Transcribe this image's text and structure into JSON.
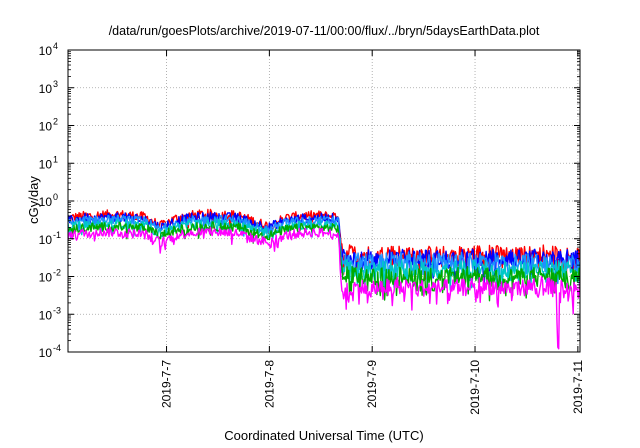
{
  "chart_data": {
    "type": "line",
    "title": "/data/run/goesPlots/archive/2019-07-11/00:00/flux/../bryn/5daysEarthData.plot",
    "xlabel": "Coordinated Universal Time (UTC)",
    "ylabel": "cGy/day",
    "y_scale": "log",
    "ylim": [
      0.0001,
      10000
    ],
    "xlim": [
      "2019-07-06 01:00",
      "2019-07-11 00:30"
    ],
    "grid": true,
    "legend": "none",
    "y_ticks": [
      {
        "value": 0.0001,
        "base": "10",
        "exp": "-4"
      },
      {
        "value": 0.001,
        "base": "10",
        "exp": "-3"
      },
      {
        "value": 0.01,
        "base": "10",
        "exp": "-2"
      },
      {
        "value": 0.1,
        "base": "10",
        "exp": "-1"
      },
      {
        "value": 1,
        "base": "10",
        "exp": "0"
      },
      {
        "value": 10,
        "base": "10",
        "exp": "1"
      },
      {
        "value": 100,
        "base": "10",
        "exp": "2"
      },
      {
        "value": 1000,
        "base": "10",
        "exp": "3"
      },
      {
        "value": 10000,
        "base": "10",
        "exp": "4"
      }
    ],
    "x_ticks": [
      "2019-7-7",
      "2019-7-8",
      "2019-7-9",
      "2019-7-10",
      "2019-7-11"
    ],
    "x_tick_days": [
      1,
      2,
      3,
      4,
      5
    ],
    "series": [
      {
        "color": "#ff0000",
        "x_days": [
          0.0,
          0.15,
          0.3,
          0.45,
          0.6,
          0.75,
          0.9,
          1.05,
          1.2,
          1.35,
          1.5,
          1.65,
          1.8,
          1.95,
          2.1,
          2.25,
          2.4,
          2.55,
          2.63,
          2.66,
          2.8,
          3.0,
          3.2,
          3.4,
          3.6,
          3.8,
          4.0,
          4.2,
          4.4,
          4.6,
          4.8,
          4.95
        ],
        "values": [
          0.35,
          0.4,
          0.42,
          0.45,
          0.42,
          0.38,
          0.22,
          0.35,
          0.42,
          0.45,
          0.45,
          0.42,
          0.3,
          0.22,
          0.35,
          0.4,
          0.42,
          0.4,
          0.4,
          0.045,
          0.04,
          0.038,
          0.042,
          0.04,
          0.038,
          0.04,
          0.042,
          0.04,
          0.038,
          0.042,
          0.04,
          0.035
        ]
      },
      {
        "color": "#0000ff",
        "x_days": [
          0.0,
          0.15,
          0.3,
          0.45,
          0.6,
          0.75,
          0.9,
          1.05,
          1.2,
          1.35,
          1.5,
          1.65,
          1.8,
          1.95,
          2.1,
          2.25,
          2.4,
          2.55,
          2.63,
          2.66,
          2.8,
          3.0,
          3.2,
          3.4,
          3.6,
          3.8,
          4.0,
          4.2,
          4.4,
          4.6,
          4.8,
          4.95
        ],
        "values": [
          0.3,
          0.35,
          0.36,
          0.38,
          0.36,
          0.33,
          0.2,
          0.3,
          0.36,
          0.38,
          0.38,
          0.36,
          0.27,
          0.2,
          0.3,
          0.34,
          0.36,
          0.35,
          0.34,
          0.035,
          0.032,
          0.03,
          0.033,
          0.032,
          0.03,
          0.032,
          0.033,
          0.031,
          0.03,
          0.033,
          0.032,
          0.03
        ]
      },
      {
        "color": "#1e90ff",
        "x_days": [
          0.0,
          0.15,
          0.3,
          0.45,
          0.6,
          0.75,
          0.9,
          1.05,
          1.2,
          1.35,
          1.5,
          1.65,
          1.8,
          1.95,
          2.1,
          2.25,
          2.4,
          2.55,
          2.63,
          2.66,
          2.8,
          3.0,
          3.2,
          3.4,
          3.6,
          3.8,
          4.0,
          4.2,
          4.4,
          4.6,
          4.8,
          4.95
        ],
        "values": [
          0.25,
          0.3,
          0.31,
          0.32,
          0.31,
          0.28,
          0.17,
          0.26,
          0.31,
          0.32,
          0.32,
          0.31,
          0.23,
          0.17,
          0.26,
          0.29,
          0.3,
          0.3,
          0.29,
          0.028,
          0.026,
          0.025,
          0.027,
          0.026,
          0.025,
          0.026,
          0.027,
          0.025,
          0.025,
          0.027,
          0.026,
          0.024
        ]
      },
      {
        "color": "#00c8c8",
        "x_days": [
          0.0,
          0.15,
          0.3,
          0.45,
          0.6,
          0.75,
          0.9,
          1.05,
          1.2,
          1.35,
          1.5,
          1.65,
          1.8,
          1.95,
          2.1,
          2.25,
          2.4,
          2.55,
          2.63,
          2.66,
          2.8,
          3.0,
          3.2,
          3.4,
          3.6,
          3.8,
          4.0,
          4.2,
          4.4,
          4.6,
          4.8,
          4.95
        ],
        "values": [
          0.2,
          0.23,
          0.24,
          0.25,
          0.24,
          0.22,
          0.14,
          0.2,
          0.24,
          0.25,
          0.25,
          0.24,
          0.18,
          0.14,
          0.2,
          0.22,
          0.23,
          0.23,
          0.22,
          0.018,
          0.016,
          0.015,
          0.017,
          0.016,
          0.015,
          0.016,
          0.017,
          0.015,
          0.015,
          0.016,
          0.016,
          0.015
        ]
      },
      {
        "color": "#00aa00",
        "x_days": [
          0.0,
          0.15,
          0.3,
          0.45,
          0.6,
          0.75,
          0.9,
          1.05,
          1.2,
          1.35,
          1.5,
          1.65,
          1.8,
          1.95,
          2.1,
          2.25,
          2.4,
          2.55,
          2.63,
          2.66,
          2.8,
          3.0,
          3.2,
          3.4,
          3.6,
          3.8,
          4.0,
          4.2,
          4.4,
          4.6,
          4.8,
          4.95
        ],
        "values": [
          0.17,
          0.2,
          0.2,
          0.21,
          0.2,
          0.19,
          0.12,
          0.17,
          0.2,
          0.21,
          0.21,
          0.2,
          0.15,
          0.12,
          0.17,
          0.19,
          0.2,
          0.19,
          0.19,
          0.012,
          0.011,
          0.01,
          0.011,
          0.011,
          0.01,
          0.011,
          0.011,
          0.01,
          0.01,
          0.011,
          0.011,
          0.01
        ]
      },
      {
        "color": "#ff00ff",
        "x_days": [
          0.0,
          0.15,
          0.3,
          0.45,
          0.6,
          0.75,
          0.9,
          1.05,
          1.2,
          1.35,
          1.5,
          1.65,
          1.8,
          1.95,
          2.1,
          2.25,
          2.4,
          2.55,
          2.63,
          2.66,
          2.8,
          3.0,
          3.2,
          3.4,
          3.6,
          3.8,
          4.0,
          4.2,
          4.4,
          4.6,
          4.75,
          4.76,
          4.77,
          4.78,
          4.8,
          4.95
        ],
        "values": [
          0.12,
          0.14,
          0.15,
          0.15,
          0.14,
          0.13,
          0.08,
          0.12,
          0.15,
          0.15,
          0.15,
          0.14,
          0.1,
          0.08,
          0.12,
          0.14,
          0.15,
          0.14,
          0.13,
          0.005,
          0.005,
          0.005,
          0.006,
          0.005,
          0.005,
          0.005,
          0.006,
          0.005,
          0.005,
          0.006,
          0.005,
          0.0001,
          0.0001,
          0.005,
          0.005,
          0.005
        ]
      }
    ]
  }
}
